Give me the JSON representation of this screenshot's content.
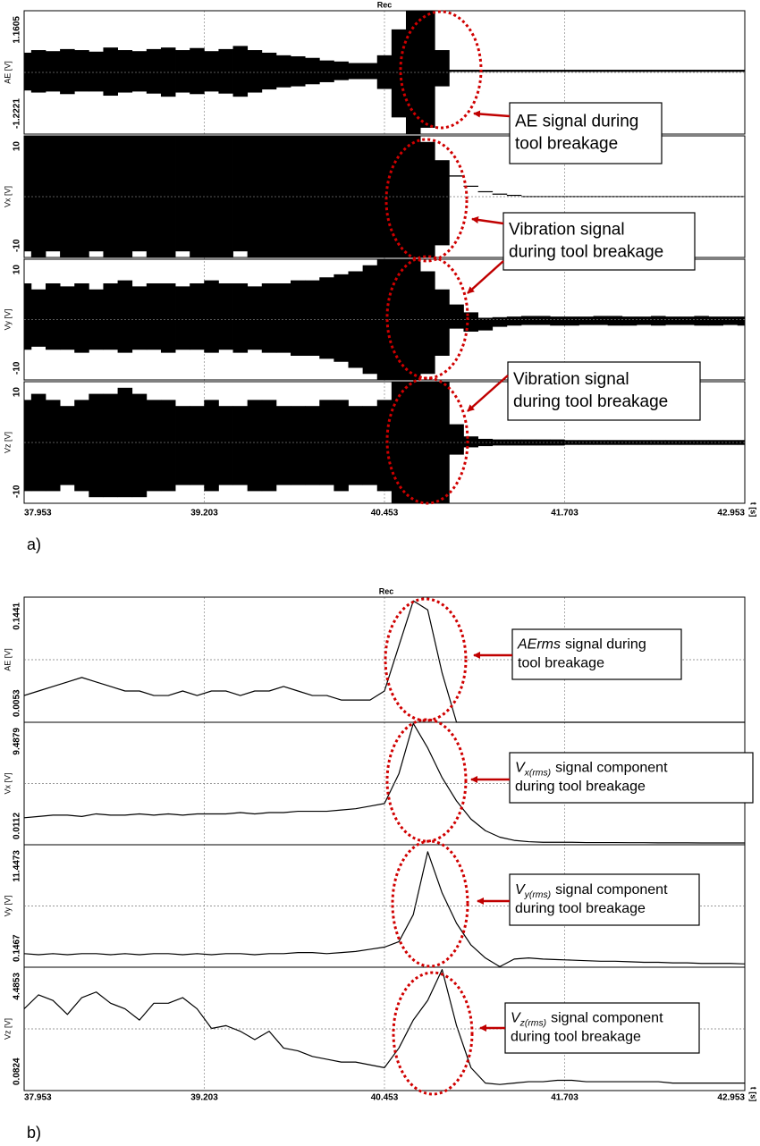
{
  "chart_data": [
    {
      "type": "envelope",
      "caption": "a)",
      "title": "Rec",
      "xlabel": "t [s]",
      "xlim": [
        37.953,
        42.953
      ],
      "xticks": [
        37.953,
        39.203,
        40.453,
        41.703,
        42.953
      ],
      "x": [
        37.953,
        38.053,
        38.153,
        38.253,
        38.353,
        38.453,
        38.553,
        38.653,
        38.753,
        38.853,
        38.953,
        39.053,
        39.153,
        39.253,
        39.353,
        39.453,
        39.553,
        39.653,
        39.753,
        39.853,
        39.953,
        40.053,
        40.153,
        40.253,
        40.353,
        40.453,
        40.553,
        40.653,
        40.753,
        40.853,
        40.953,
        41.053,
        41.153,
        41.253,
        41.353,
        41.453,
        41.553,
        41.653,
        41.753,
        41.853,
        41.953,
        42.053,
        42.153,
        42.253,
        42.353,
        42.453,
        42.553,
        42.653,
        42.753,
        42.853,
        42.953
      ],
      "panels": [
        {
          "ylabel": "AE [V]",
          "ylim": [
            -1.2221,
            1.1605
          ],
          "yticks": [
            -1.2221,
            1.1605
          ],
          "series": [
            {
              "color": "#000000",
              "values": [
                0.35,
                0.4,
                0.38,
                0.42,
                0.4,
                0.37,
                0.45,
                0.4,
                0.38,
                0.42,
                0.45,
                0.4,
                0.44,
                0.38,
                0.42,
                0.48,
                0.4,
                0.35,
                0.3,
                0.28,
                0.25,
                0.2,
                0.18,
                0.15,
                0.15,
                0.3,
                0.8,
                1.1605,
                1.1605,
                0.4,
                0.02,
                0.02,
                0.02,
                0.02,
                0.02,
                0.02,
                0.02,
                0.02,
                0.02,
                0.02,
                0.02,
                0.02,
                0.02,
                0.02,
                0.02,
                0.02,
                0.02,
                0.02,
                0.02,
                0.02,
                0.02
              ]
            },
            {
              "color": "#000000",
              "values": [
                -0.38,
                -0.42,
                -0.4,
                -0.45,
                -0.4,
                -0.4,
                -0.48,
                -0.42,
                -0.4,
                -0.44,
                -0.5,
                -0.42,
                -0.45,
                -0.4,
                -0.44,
                -0.5,
                -0.42,
                -0.36,
                -0.32,
                -0.3,
                -0.26,
                -0.22,
                -0.18,
                -0.16,
                -0.16,
                -0.35,
                -0.9,
                -1.2221,
                -1.1,
                -0.3,
                -0.02,
                -0.02,
                -0.02,
                -0.02,
                -0.02,
                -0.02,
                -0.02,
                -0.02,
                -0.02,
                -0.02,
                -0.02,
                -0.02,
                -0.02,
                -0.02,
                -0.02,
                -0.02,
                -0.02,
                -0.02,
                -0.02,
                -0.02,
                -0.02
              ]
            }
          ]
        },
        {
          "ylabel": "Vx [V]",
          "ylim": [
            -10,
            10
          ],
          "yticks": [
            -10,
            10
          ],
          "series": [
            {
              "color": "#000000",
              "values": [
                10,
                10,
                10,
                10,
                10,
                10,
                10,
                10,
                10,
                10,
                10,
                10,
                10,
                10,
                10,
                10,
                10,
                10,
                10,
                10,
                10,
                10,
                10,
                10,
                10,
                10,
                10,
                10,
                9,
                6,
                3.5,
                1.8,
                0.9,
                0.5,
                0.3,
                0.1,
                0.1,
                0.1,
                0.1,
                0.1,
                0.1,
                0.1,
                0.1,
                0.1,
                0.1,
                0.1,
                0.1,
                0.1,
                0.1,
                0.1,
                0.1
              ]
            },
            {
              "color": "#000000",
              "values": [
                -9,
                -10,
                -9,
                -10,
                -10,
                -9,
                -10,
                -10,
                -9,
                -10,
                -10,
                -9,
                -10,
                -10,
                -10,
                -9,
                -10,
                -10,
                -10,
                -10,
                -10,
                -10,
                -10,
                -10,
                -10,
                -10,
                -10,
                -10,
                -10,
                -8,
                3.3,
                1.7,
                0.8,
                0.4,
                0.2,
                0,
                0,
                0,
                0,
                0,
                0,
                0,
                0,
                0,
                0,
                0,
                0,
                0,
                0,
                0,
                0
              ]
            }
          ]
        },
        {
          "ylabel": "Vy [V]",
          "ylim": [
            -10,
            10
          ],
          "yticks": [
            -10,
            10
          ],
          "series": [
            {
              "color": "#000000",
              "values": [
                6,
                5,
                6,
                5.5,
                6,
                5,
                6,
                6.5,
                5.5,
                6,
                6,
                5.5,
                6,
                6.5,
                6,
                6,
                5.5,
                6,
                6,
                6.5,
                6.5,
                7,
                7.5,
                8,
                9,
                10,
                10,
                10,
                8,
                5,
                2.5,
                1.2,
                0.3,
                0.4,
                0.5,
                0.6,
                0.6,
                0.5,
                0.5,
                0.5,
                0.6,
                0.6,
                0.5,
                0.5,
                0.6,
                0.5,
                0.5,
                0.6,
                0.5,
                0.5,
                0.5
              ]
            },
            {
              "color": "#000000",
              "values": [
                -5,
                -4.5,
                -5,
                -5,
                -5.5,
                -5,
                -5,
                -5.5,
                -5,
                -5,
                -5.5,
                -5,
                -5,
                -5.5,
                -5,
                -5.5,
                -5,
                -5.5,
                -5.5,
                -6,
                -6,
                -6.5,
                -7,
                -8,
                -9,
                -10,
                -10,
                -10,
                -9,
                -6,
                -1.5,
                -2,
                -1.8,
                -1.2,
                -1,
                -0.9,
                -0.9,
                -1,
                -1,
                -0.9,
                -0.9,
                -1,
                -1,
                -0.9,
                -1,
                -0.9,
                -0.9,
                -1,
                -1,
                -0.9,
                -1
              ]
            }
          ]
        },
        {
          "ylabel": "Vz [V]",
          "ylim": [
            -10,
            10
          ],
          "yticks": [
            -10,
            10
          ],
          "series": [
            {
              "color": "#000000",
              "values": [
                7,
                8,
                7,
                6,
                7,
                8,
                8,
                9,
                8,
                7,
                7,
                6,
                6,
                7,
                6,
                6,
                7,
                7,
                6,
                6,
                6,
                7,
                7,
                6,
                6,
                7,
                10,
                10,
                10,
                10,
                3,
                1,
                0.6,
                0.5,
                0.5,
                0.5,
                0.5,
                0.5,
                0.4,
                0.4,
                0.4,
                0.4,
                0.4,
                0.4,
                0.4,
                0.4,
                0.4,
                0.4,
                0.4,
                0.4,
                0.4
              ]
            },
            {
              "color": "#000000",
              "values": [
                -8,
                -8,
                -8,
                -7,
                -8,
                -9,
                -9,
                -9,
                -9,
                -8,
                -8,
                -7,
                -7,
                -8,
                -7,
                -7,
                -8,
                -8,
                -7,
                -7,
                -7,
                -7,
                -8,
                -7,
                -7,
                -8,
                -10,
                -10,
                -10,
                -10,
                -2,
                -0.8,
                -0.6,
                -0.5,
                -0.5,
                -0.5,
                -0.5,
                -0.5,
                -0.4,
                -0.4,
                -0.4,
                -0.4,
                -0.4,
                -0.4,
                -0.4,
                -0.4,
                -0.4,
                -0.4,
                -0.4,
                -0.4,
                -0.4
              ]
            }
          ]
        }
      ],
      "annotations": [
        {
          "lines": [
            "AE signal during",
            "tool breakage"
          ]
        },
        {
          "lines": [
            "Vibration signal",
            "during tool breakage"
          ]
        },
        {
          "lines": [
            "Vibration signal",
            "during tool breakage"
          ]
        }
      ]
    },
    {
      "type": "line",
      "caption": "b)",
      "title": "Rec",
      "xlabel": "t [s]",
      "xlim": [
        37.953,
        42.953
      ],
      "xticks": [
        37.953,
        39.203,
        40.453,
        41.703,
        42.953
      ],
      "x": [
        37.953,
        38.053,
        38.153,
        38.253,
        38.353,
        38.453,
        38.553,
        38.653,
        38.753,
        38.853,
        38.953,
        39.053,
        39.153,
        39.253,
        39.353,
        39.453,
        39.553,
        39.653,
        39.753,
        39.853,
        39.953,
        40.053,
        40.153,
        40.253,
        40.353,
        40.453,
        40.553,
        40.653,
        40.753,
        40.853,
        40.953,
        41.053,
        41.153,
        41.253,
        41.353,
        41.453,
        41.553,
        41.653,
        41.753,
        41.853,
        41.953,
        42.053,
        42.153,
        42.253,
        42.353,
        42.453,
        42.553,
        42.653,
        42.753,
        42.853,
        42.953
      ],
      "panels": [
        {
          "ylabel": "AE [V]",
          "ylim": [
            0.0053,
            0.1441
          ],
          "yticks": [
            0.0053,
            0.1441
          ],
          "series": [
            {
              "color": "#000000",
              "values": [
                0.035,
                0.04,
                0.045,
                0.05,
                0.055,
                0.05,
                0.045,
                0.04,
                0.04,
                0.035,
                0.035,
                0.04,
                0.035,
                0.04,
                0.04,
                0.035,
                0.04,
                0.04,
                0.045,
                0.04,
                0.035,
                0.035,
                0.03,
                0.03,
                0.03,
                0.04,
                0.09,
                0.14,
                0.13,
                0.06,
                0.0053,
                0.0053,
                0.0053,
                0.0053,
                0.0053,
                0.0053,
                0.0053,
                0.0053,
                0.0053,
                0.0053,
                0.0053,
                0.0053,
                0.0053,
                0.0053,
                0.0053,
                0.0053,
                0.0053,
                0.0053,
                0.0053,
                0.0053,
                0.0053
              ]
            }
          ]
        },
        {
          "ylabel": "Vx [V]",
          "ylim": [
            0.0112,
            9.4879
          ],
          "yticks": [
            0.0112,
            9.4879
          ],
          "series": [
            {
              "color": "#000000",
              "values": [
                2.1,
                2.2,
                2.3,
                2.3,
                2.2,
                2.4,
                2.3,
                2.3,
                2.4,
                2.3,
                2.4,
                2.3,
                2.4,
                2.4,
                2.4,
                2.5,
                2.4,
                2.5,
                2.5,
                2.6,
                2.6,
                2.6,
                2.7,
                2.8,
                3.0,
                3.2,
                5.5,
                9.4,
                7.5,
                5.2,
                3.4,
                2.0,
                1.1,
                0.6,
                0.35,
                0.25,
                0.2,
                0.2,
                0.2,
                0.18,
                0.18,
                0.18,
                0.17,
                0.17,
                0.16,
                0.16,
                0.16,
                0.15,
                0.15,
                0.15,
                0.15
              ]
            }
          ]
        },
        {
          "ylabel": "Vy [V]",
          "ylim": [
            0.1467,
            11.4473
          ],
          "yticks": [
            0.1467,
            11.4473
          ],
          "series": [
            {
              "color": "#000000",
              "values": [
                1.4,
                1.3,
                1.4,
                1.3,
                1.4,
                1.4,
                1.3,
                1.4,
                1.3,
                1.4,
                1.4,
                1.3,
                1.4,
                1.3,
                1.4,
                1.4,
                1.3,
                1.4,
                1.4,
                1.5,
                1.5,
                1.4,
                1.5,
                1.6,
                1.8,
                2.0,
                2.5,
                5.0,
                10.8,
                7.0,
                4.2,
                2.2,
                1.0,
                0.2,
                0.9,
                1.0,
                0.9,
                0.85,
                0.8,
                0.75,
                0.7,
                0.7,
                0.65,
                0.6,
                0.6,
                0.55,
                0.55,
                0.5,
                0.5,
                0.5,
                0.45
              ]
            }
          ]
        },
        {
          "ylabel": "Vz [V]",
          "ylim": [
            0.0824,
            4.4853
          ],
          "yticks": [
            0.0824,
            4.4853
          ],
          "series": [
            {
              "color": "#000000",
              "values": [
                3.0,
                3.5,
                3.3,
                2.8,
                3.4,
                3.6,
                3.2,
                3.0,
                2.6,
                3.2,
                3.2,
                3.4,
                3.0,
                2.3,
                2.4,
                2.2,
                1.9,
                2.2,
                1.6,
                1.5,
                1.3,
                1.2,
                1.1,
                1.1,
                1.0,
                0.9,
                1.6,
                2.6,
                3.3,
                4.4,
                2.4,
                0.9,
                0.35,
                0.3,
                0.35,
                0.4,
                0.4,
                0.45,
                0.45,
                0.4,
                0.4,
                0.4,
                0.4,
                0.4,
                0.4,
                0.35,
                0.35,
                0.35,
                0.35,
                0.35,
                0.35
              ]
            }
          ]
        }
      ],
      "annotations": [
        {
          "italic": "AErms",
          "lines": [
            "signal during",
            "tool breakage"
          ]
        },
        {
          "italic": "V",
          "sub": "x(rms)",
          "lines": [
            "signal component",
            "during tool breakage"
          ]
        },
        {
          "italic": "V",
          "sub": "y(rms)",
          "lines": [
            "signal component",
            "during tool breakage"
          ]
        },
        {
          "italic": "V",
          "sub": "z(rms)",
          "lines": [
            "signal component",
            "during tool breakage"
          ]
        }
      ]
    }
  ]
}
